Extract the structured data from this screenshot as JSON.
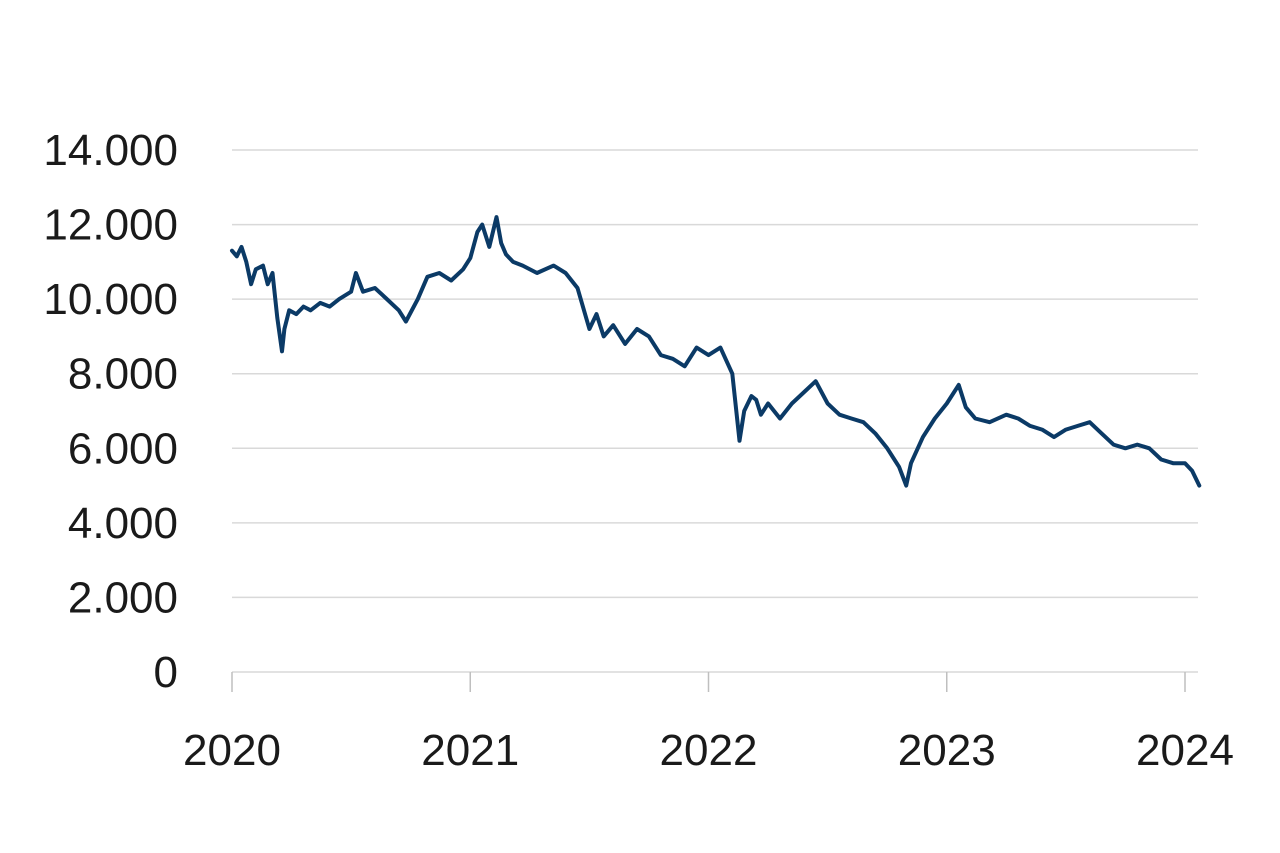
{
  "chart_data": {
    "type": "line",
    "title": "",
    "xlabel": "",
    "ylabel": "",
    "ylim": [
      0,
      14000
    ],
    "xlim": [
      2020,
      2024.06
    ],
    "y_ticks": [
      0,
      2000,
      4000,
      6000,
      8000,
      10000,
      12000,
      14000
    ],
    "y_tick_labels": [
      "0",
      "2.000",
      "4.000",
      "6.000",
      "8.000",
      "10.000",
      "12.000",
      "14.000"
    ],
    "x_ticks": [
      2020,
      2021,
      2022,
      2023,
      2024
    ],
    "x_tick_labels": [
      "2020",
      "2021",
      "2022",
      "2023",
      "2024"
    ],
    "grid": true,
    "legend": "none",
    "colors": {
      "series": "#0b3a66"
    },
    "series": [
      {
        "x": [
          2020.0,
          2020.02,
          2020.04,
          2020.06,
          2020.08,
          2020.1,
          2020.13,
          2020.15,
          2020.17,
          2020.19,
          2020.21,
          2020.22,
          2020.24,
          2020.27,
          2020.3,
          2020.33,
          2020.37,
          2020.41,
          2020.45,
          2020.5,
          2020.52,
          2020.55,
          2020.6,
          2020.65,
          2020.7,
          2020.73,
          2020.78,
          2020.82,
          2020.87,
          2020.92,
          2020.97,
          2021.0,
          2021.03,
          2021.05,
          2021.08,
          2021.11,
          2021.13,
          2021.15,
          2021.18,
          2021.22,
          2021.28,
          2021.35,
          2021.4,
          2021.45,
          2021.5,
          2021.53,
          2021.56,
          2021.6,
          2021.65,
          2021.7,
          2021.75,
          2021.8,
          2021.85,
          2021.9,
          2021.95,
          2022.0,
          2022.05,
          2022.1,
          2022.13,
          2022.15,
          2022.18,
          2022.2,
          2022.22,
          2022.25,
          2022.3,
          2022.35,
          2022.4,
          2022.45,
          2022.5,
          2022.55,
          2022.6,
          2022.65,
          2022.7,
          2022.75,
          2022.8,
          2022.83,
          2022.85,
          2022.9,
          2022.95,
          2023.0,
          2023.05,
          2023.08,
          2023.12,
          2023.18,
          2023.25,
          2023.3,
          2023.35,
          2023.4,
          2023.45,
          2023.5,
          2023.55,
          2023.6,
          2023.65,
          2023.7,
          2023.75,
          2023.8,
          2023.85,
          2023.9,
          2023.95,
          2024.0,
          2024.03,
          2024.06
        ],
        "y": [
          11300,
          11150,
          11400,
          11000,
          10400,
          10800,
          10900,
          10400,
          10700,
          9500,
          8600,
          9200,
          9700,
          9600,
          9800,
          9700,
          9900,
          9800,
          10000,
          10200,
          10700,
          10200,
          10300,
          10000,
          9700,
          9400,
          10000,
          10600,
          10700,
          10500,
          10800,
          11100,
          11800,
          12000,
          11400,
          12200,
          11500,
          11200,
          11000,
          10900,
          10700,
          10900,
          10700,
          10300,
          9200,
          9600,
          9000,
          9300,
          8800,
          9200,
          9000,
          8500,
          8400,
          8200,
          8700,
          8500,
          8700,
          8000,
          6200,
          7000,
          7400,
          7300,
          6900,
          7200,
          6800,
          7200,
          7500,
          7800,
          7200,
          6900,
          6800,
          6700,
          6400,
          6000,
          5500,
          5000,
          5600,
          6300,
          6800,
          7200,
          7700,
          7100,
          6800,
          6700,
          6900,
          6800,
          6600,
          6500,
          6300,
          6500,
          6600,
          6700,
          6400,
          6100,
          6000,
          6100,
          6000,
          5700,
          5600,
          5600,
          5400,
          5000
        ]
      }
    ]
  }
}
